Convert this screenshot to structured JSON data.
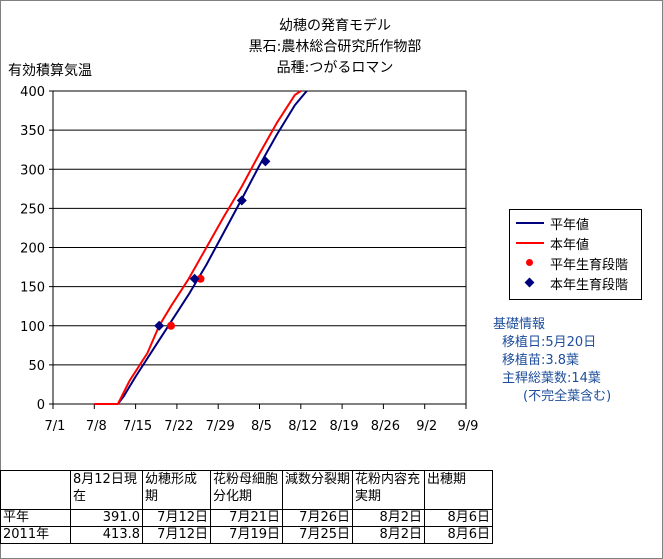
{
  "titles": [
    "幼穂の発育モデル",
    "黒石:農林総合研究所作物部",
    "品種:つがるロマン"
  ],
  "y_axis_title": "有効積算気温",
  "chart_data": {
    "type": "line",
    "x_tick_labels": [
      "7/1",
      "7/8",
      "7/15",
      "7/22",
      "7/29",
      "8/5",
      "8/12",
      "8/19",
      "8/26",
      "9/2",
      "9/9"
    ],
    "xlim": [
      "7/1",
      "9/9"
    ],
    "ylim": [
      0,
      400
    ],
    "y_ticks": [
      0,
      50,
      100,
      150,
      200,
      250,
      300,
      350,
      400
    ],
    "grid": "horizontal",
    "legend_position": "right",
    "series": [
      {
        "name": "平年値",
        "color": "#00007f",
        "kind": "line",
        "x": [
          "7/8",
          "7/12",
          "7/13",
          "7/15",
          "7/18",
          "7/21",
          "7/24",
          "7/27",
          "7/30",
          "8/2",
          "8/5",
          "8/8",
          "8/11",
          "8/13"
        ],
        "y": [
          0,
          0,
          10,
          35,
          70,
          105,
          140,
          178,
          220,
          262,
          305,
          345,
          382,
          400
        ]
      },
      {
        "name": "本年値",
        "color": "#ff0000",
        "kind": "line",
        "x": [
          "7/8",
          "7/12",
          "7/14",
          "7/17",
          "7/19",
          "7/21",
          "7/24",
          "7/27",
          "7/30",
          "8/2",
          "8/5",
          "8/8",
          "8/11",
          "8/12"
        ],
        "y": [
          0,
          0,
          30,
          65,
          100,
          125,
          160,
          200,
          240,
          278,
          320,
          360,
          395,
          400
        ]
      },
      {
        "name": "平年生育段階",
        "color": "#ff0000",
        "kind": "marker-circle",
        "x": [
          "7/21",
          "7/26"
        ],
        "y": [
          100,
          160
        ]
      },
      {
        "name": "本年生育段階",
        "color": "#00007f",
        "kind": "marker-diamond",
        "x": [
          "7/19",
          "7/25",
          "8/2",
          "8/6"
        ],
        "y": [
          100,
          160,
          260,
          310
        ]
      }
    ]
  },
  "info": {
    "title": "基礎情報",
    "lines": [
      "移植日:5月20日",
      "移植苗:3.8葉",
      "主稈総葉数:14葉",
      "(不完全葉含む)"
    ]
  },
  "table": {
    "headers": [
      "",
      "8月12日現在",
      "幼穂形成期",
      "花粉母細胞分化期",
      "減数分裂期",
      "花粉内容充実期",
      "出穂期"
    ],
    "rows": [
      [
        "平年",
        "391.0",
        "7月12日",
        "7月21日",
        "7月26日",
        "8月2日",
        "8月6日"
      ],
      [
        "2011年",
        "413.8",
        "7月12日",
        "7月19日",
        "7月25日",
        "8月2日",
        "8月6日"
      ]
    ]
  }
}
